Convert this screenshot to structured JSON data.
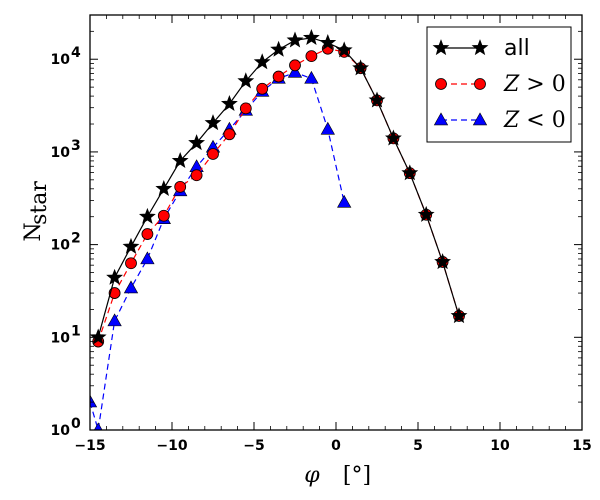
{
  "chart_data": {
    "type": "line",
    "xlabel": "φ",
    "xlabel_unit": "[°]",
    "ylabel_main": "N",
    "ylabel_sub": "star",
    "xlim": [
      -15,
      15
    ],
    "ylim": [
      1,
      30000
    ],
    "yscale": "log",
    "x_ticks": [
      -15,
      -10,
      -5,
      0,
      5,
      10,
      15
    ],
    "x_tick_labels": [
      "−15",
      "−10",
      "−5",
      "0",
      "5",
      "10",
      "15"
    ],
    "y_ticks": [
      1,
      10,
      100,
      1000,
      10000
    ],
    "y_tick_labels": [
      {
        "base": "10",
        "exp": "0"
      },
      {
        "base": "10",
        "exp": "1"
      },
      {
        "base": "10",
        "exp": "2"
      },
      {
        "base": "10",
        "exp": "3"
      },
      {
        "base": "10",
        "exp": "4"
      }
    ],
    "legend_position": "top-right",
    "series": [
      {
        "name": "all",
        "color": "#000000",
        "marker": "star",
        "line": "solid",
        "x": [
          -14.5,
          -13.5,
          -12.5,
          -11.5,
          -10.5,
          -9.5,
          -8.5,
          -7.5,
          -6.5,
          -5.5,
          -4.5,
          -3.5,
          -2.5,
          -1.5,
          -0.5,
          0.5,
          1.5,
          2.5,
          3.5,
          4.5,
          5.5,
          6.5,
          7.5
        ],
        "y": [
          10,
          44,
          95,
          200,
          400,
          800,
          1250,
          2050,
          3300,
          5800,
          9300,
          12700,
          16000,
          17000,
          15000,
          12500,
          8000,
          3600,
          1400,
          590,
          210,
          65,
          17
        ]
      },
      {
        "name": "Z > 0",
        "label_main": "Z",
        "label_rest": " > 0",
        "color": "#ff0000",
        "marker": "circle",
        "line": "dashed",
        "x": [
          -14.5,
          -13.5,
          -12.5,
          -11.5,
          -10.5,
          -9.5,
          -8.5,
          -7.5,
          -6.5,
          -5.5,
          -4.5,
          -3.5,
          -2.5,
          -1.5,
          -0.5,
          0.5,
          1.5,
          2.5,
          3.5,
          4.5,
          5.5,
          6.5,
          7.5
        ],
        "y": [
          9,
          30,
          63,
          130,
          205,
          420,
          560,
          950,
          1550,
          2950,
          4800,
          6500,
          8600,
          10800,
          13000,
          12000,
          8000,
          3600,
          1400,
          590,
          210,
          65,
          17
        ]
      },
      {
        "name": "Z < 0",
        "label_main": "Z",
        "label_rest": " < 0",
        "color": "#0000ff",
        "marker": "triangle",
        "line": "dashed",
        "x": [
          -15,
          -14.5,
          -13.5,
          -12.5,
          -11.5,
          -10.5,
          -9.5,
          -8.5,
          -7.5,
          -6.5,
          -5.5,
          -4.5,
          -3.5,
          -2.5,
          -1.5,
          -0.5,
          0.5
        ],
        "y": [
          2,
          1,
          15,
          34,
          70,
          190,
          380,
          690,
          1120,
          1750,
          2800,
          4500,
          6200,
          7200,
          6200,
          1750,
          285
        ]
      }
    ]
  }
}
